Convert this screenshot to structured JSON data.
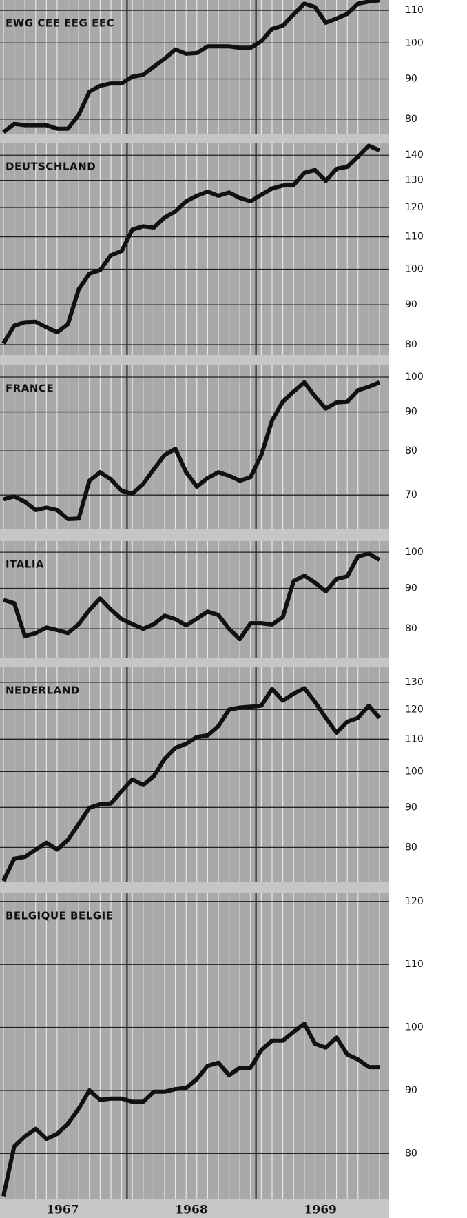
{
  "x_axis": {
    "labels": [
      "1967",
      "1968",
      "1969"
    ]
  },
  "chart_data": [
    {
      "type": "line",
      "title": "EWG CEE EEG EEC",
      "color": "#111111",
      "log_scale": true,
      "ylim": [
        76.5,
        113.4
      ],
      "yticks": [
        80,
        90,
        100,
        110
      ],
      "values": [
        77.0,
        78.9,
        78.6,
        78.6,
        78.6,
        77.8,
        77.8,
        81.0,
        86.7,
        88.2,
        88.8,
        88.8,
        90.6,
        91.1,
        93.3,
        95.5,
        98.1,
        96.9,
        97.1,
        99.0,
        99.0,
        99.0,
        98.6,
        98.6,
        100.5,
        104.2,
        105.2,
        108.7,
        112.2,
        111.1,
        106.1,
        107.4,
        108.9,
        112.2,
        112.9,
        113.3
      ]
    },
    {
      "type": "line",
      "title": "DEUTSCHLAND",
      "color": "#111111",
      "log_scale": true,
      "ylim": [
        77.6,
        145
      ],
      "yticks": [
        80,
        90,
        100,
        110,
        120,
        130,
        140
      ],
      "values": [
        80.3,
        84.6,
        85.5,
        85.6,
        84.2,
        83.0,
        85.0,
        94.2,
        98.7,
        99.7,
        104.2,
        105.5,
        112.4,
        113.5,
        113.1,
        116.5,
        118.6,
        122.2,
        124.2,
        125.7,
        124.2,
        125.4,
        123.4,
        122.2,
        124.6,
        126.9,
        128.0,
        128.2,
        132.9,
        134.0,
        129.8,
        134.5,
        135.3,
        139.4,
        144,
        142
      ]
    },
    {
      "type": "line",
      "title": "FRANCE",
      "color": "#111111",
      "log_scale": true,
      "ylim": [
        63.1,
        103.6
      ],
      "yticks": [
        70,
        80,
        90,
        100
      ],
      "values": [
        69.1,
        69.7,
        68.6,
        66.9,
        67.4,
        66.9,
        65.1,
        65.2,
        73.1,
        75.0,
        73.4,
        70.9,
        70.3,
        72.4,
        75.7,
        79.0,
        80.5,
        75.0,
        71.8,
        73.7,
        75.0,
        74.2,
        73.1,
        73.9,
        79.0,
        87.7,
        92.8,
        95.7,
        98.4,
        94.3,
        90.9,
        92.6,
        92.8,
        96.1,
        97.1,
        98.4
      ]
    },
    {
      "type": "line",
      "title": "ITALIA",
      "color": "#111111",
      "log_scale": true,
      "ylim": [
        73.4,
        103.3
      ],
      "yticks": [
        80,
        90,
        100
      ],
      "values": [
        87.0,
        86.2,
        78.3,
        79.0,
        80.3,
        79.7,
        79.0,
        81.1,
        84.5,
        87.4,
        84.6,
        82.3,
        81.1,
        80.0,
        81.1,
        83.1,
        82.3,
        80.8,
        82.4,
        84.1,
        83.3,
        80.0,
        77.6,
        81.3,
        81.3,
        81.0,
        82.8,
        91.9,
        93.4,
        91.5,
        89.2,
        92.5,
        93.2,
        98.8,
        99.6,
        97.8
      ]
    },
    {
      "type": "line",
      "title": "NEDERLAND",
      "color": "#111111",
      "log_scale": true,
      "ylim": [
        72.2,
        135.9
      ],
      "yticks": [
        80,
        90,
        100,
        110,
        120,
        130
      ],
      "values": [
        72.5,
        77.4,
        77.8,
        79.5,
        81.1,
        79.5,
        81.8,
        85.7,
        89.9,
        90.8,
        91.0,
        94.4,
        97.7,
        96.1,
        98.7,
        103.8,
        107.2,
        108.5,
        110.7,
        111.2,
        114.3,
        120.0,
        120.7,
        121.0,
        121.4,
        127.5,
        123.2,
        125.7,
        127.8,
        122.7,
        117.1,
        112.1,
        115.8,
        117.1,
        121.4,
        117.1
      ]
    },
    {
      "type": "line",
      "title": "BELGIQUE BELGIE",
      "color": "#111111",
      "log_scale": false,
      "ylim": [
        72.7,
        121.4
      ],
      "yticks": [
        80,
        90,
        100,
        110,
        120
      ],
      "values": [
        73.2,
        81.1,
        82.7,
        83.9,
        82.3,
        83.1,
        84.7,
        87.1,
        90.0,
        88.5,
        88.7,
        88.7,
        88.2,
        88.2,
        89.8,
        89.8,
        90.2,
        90.4,
        91.8,
        93.9,
        94.4,
        92.4,
        93.6,
        93.6,
        96.4,
        97.9,
        97.9,
        99.3,
        100.6,
        97.4,
        96.8,
        98.4,
        95.7,
        94.9,
        93.7,
        93.7
      ]
    }
  ]
}
